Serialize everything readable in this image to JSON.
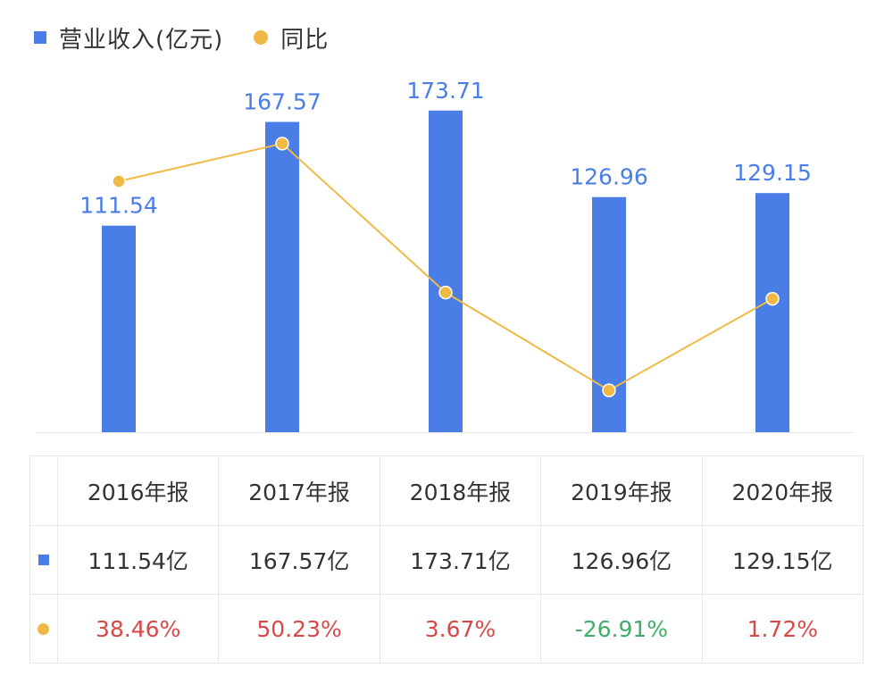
{
  "legend": {
    "revenue_label": "营业收入(亿元)",
    "yoy_label": "同比"
  },
  "colors": {
    "bar": "#4a7ee6",
    "line": "#f0b945",
    "value_label": "#4a7ee6",
    "positive": "#d94848",
    "negative": "#3fae6a"
  },
  "chart_data": {
    "type": "bar",
    "categories": [
      "2016年报",
      "2017年报",
      "2018年报",
      "2019年报",
      "2020年报"
    ],
    "series": [
      {
        "name": "营业收入(亿元)",
        "type": "bar",
        "values": [
          111.54,
          167.57,
          173.71,
          126.96,
          129.15
        ]
      },
      {
        "name": "同比",
        "type": "line",
        "values": [
          38.46,
          50.23,
          3.67,
          -26.91,
          1.72
        ]
      }
    ],
    "bar_labels": [
      "111.54",
      "167.57",
      "173.71",
      "126.96",
      "129.15"
    ],
    "ylim_bar": [
      0,
      190
    ],
    "ylim_line": [
      -40,
      70
    ]
  },
  "table": {
    "headers": [
      "2016年报",
      "2017年报",
      "2018年报",
      "2019年报",
      "2020年报"
    ],
    "revenue": [
      "111.54亿",
      "167.57亿",
      "173.71亿",
      "126.96亿",
      "129.15亿"
    ],
    "yoy": [
      "38.46%",
      "50.23%",
      "3.67%",
      "-26.91%",
      "1.72%"
    ],
    "yoy_sign": [
      "pos",
      "pos",
      "pos",
      "neg",
      "pos"
    ]
  }
}
